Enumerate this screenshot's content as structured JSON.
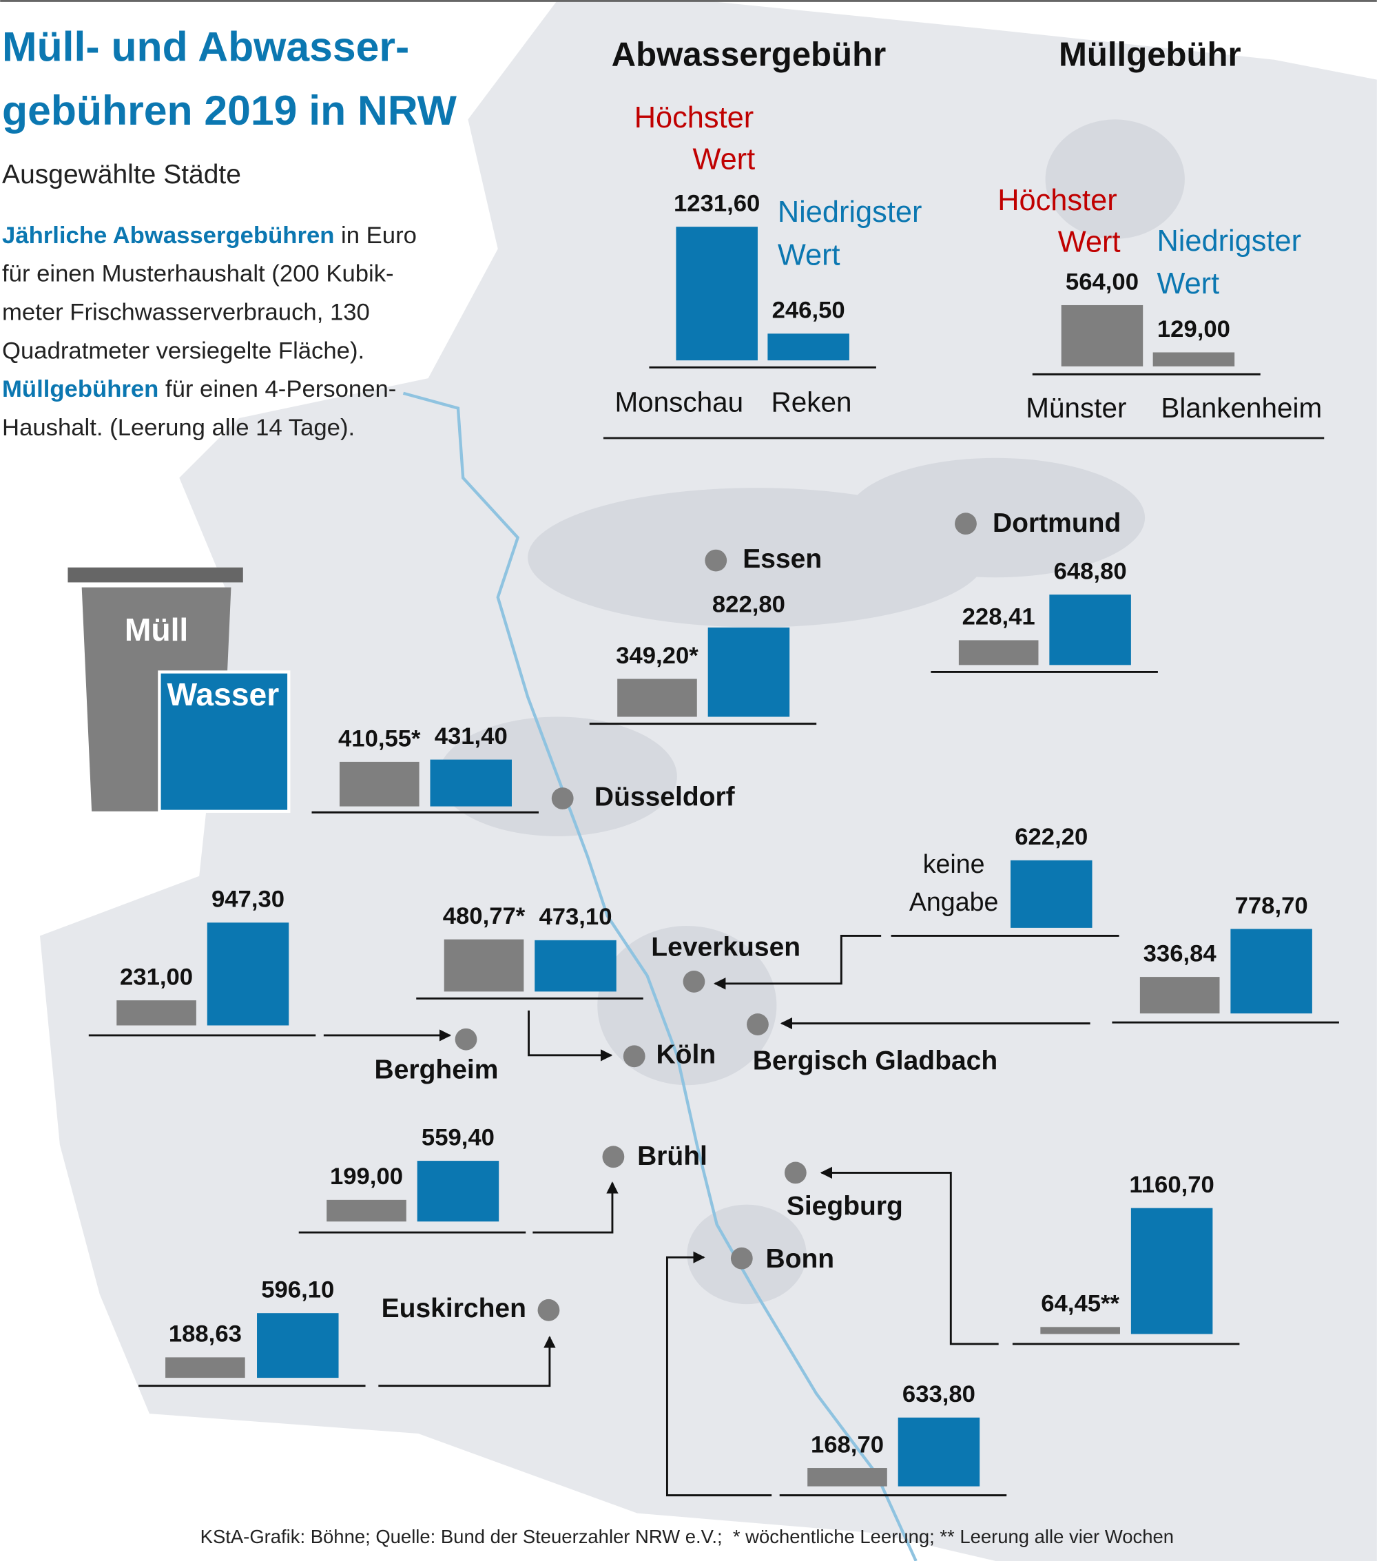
{
  "header": {
    "title_lines": [
      "Müll- und Abwasser-",
      "gebühren 2019 in NRW"
    ],
    "subtitle": "Ausgewählte Städte",
    "desc_lines": [
      {
        "highlight": "Jährliche Abwassergebühren",
        "text": " in Euro"
      },
      {
        "text": "für einen Musterhaushalt (200 Kubik-"
      },
      {
        "text": "meter Frischwasserverbrauch, 130"
      },
      {
        "text": "Quadratmeter versiegelte Fläche)."
      },
      {
        "highlight": "Müllgebühren",
        "text": " für einen 4-Personen-"
      },
      {
        "text": "Haushalt. (Leerung alle 14 Tage)."
      }
    ]
  },
  "legend": {
    "muell": "Müll",
    "wasser": "Wasser",
    "muell_color": "#7f7f7f",
    "wasser_color": "#0b77b1"
  },
  "summary": [
    {
      "title": "Abwassergebühr",
      "high_label": [
        "Höchster",
        "Wert"
      ],
      "low_label": [
        "Niedrigster",
        "Wert"
      ],
      "kind": "wasser",
      "high": {
        "city": "Monschau",
        "value": 1231.6,
        "label": "1231,60"
      },
      "low": {
        "city": "Reken",
        "value": 246.5,
        "label": "246,50"
      }
    },
    {
      "title": "Müllgebühr",
      "high_label": [
        "Höchster",
        "Wert"
      ],
      "low_label": [
        "Niedrigster",
        "Wert"
      ],
      "kind": "muell",
      "high": {
        "city": "Münster",
        "value": 564.0,
        "label": "564,00"
      },
      "low": {
        "city": "Blankenheim",
        "value": 129.0,
        "label": "129,00"
      }
    }
  ],
  "cities": [
    {
      "name": "Essen",
      "muell": {
        "value": 349.2,
        "label": "349,20*"
      },
      "wasser": {
        "value": 822.8,
        "label": "822,80"
      }
    },
    {
      "name": "Dortmund",
      "muell": {
        "value": 228.41,
        "label": "228,41"
      },
      "wasser": {
        "value": 648.8,
        "label": "648,80"
      }
    },
    {
      "name": "Düsseldorf",
      "muell": {
        "value": 410.55,
        "label": "410,55*"
      },
      "wasser": {
        "value": 431.4,
        "label": "431,40"
      }
    },
    {
      "name": "Leverkusen",
      "muell": null,
      "note": [
        "keine",
        "Angabe"
      ],
      "wasser": {
        "value": 622.2,
        "label": "622,20"
      }
    },
    {
      "name": "Bergisch Gladbach",
      "muell": {
        "value": 336.84,
        "label": "336,84"
      },
      "wasser": {
        "value": 778.7,
        "label": "778,70"
      }
    },
    {
      "name": "Bergheim",
      "muell": {
        "value": 231.0,
        "label": "231,00"
      },
      "wasser": {
        "value": 947.3,
        "label": "947,30"
      }
    },
    {
      "name": "Köln",
      "muell": {
        "value": 480.77,
        "label": "480,77*"
      },
      "wasser": {
        "value": 473.1,
        "label": "473,10"
      }
    },
    {
      "name": "Brühl",
      "muell": {
        "value": 199.0,
        "label": "199,00"
      },
      "wasser": {
        "value": 559.4,
        "label": "559,40"
      }
    },
    {
      "name": "Euskirchen",
      "muell": {
        "value": 188.63,
        "label": "188,63"
      },
      "wasser": {
        "value": 596.1,
        "label": "596,10"
      }
    },
    {
      "name": "Siegburg",
      "muell": {
        "value": 64.45,
        "label": "64,45**"
      },
      "wasser": {
        "value": 1160.7,
        "label": "1160,70"
      }
    },
    {
      "name": "Bonn",
      "muell": {
        "value": 168.7,
        "label": "168,70"
      },
      "wasser": {
        "value": 633.8,
        "label": "633,80"
      }
    }
  ],
  "footer": "KStA-Grafik: Böhne; Quelle: Bund der Steuerzahler NRW e.V.;  * wöchentliche Leerung; ** Leerung alle vier Wochen"
}
